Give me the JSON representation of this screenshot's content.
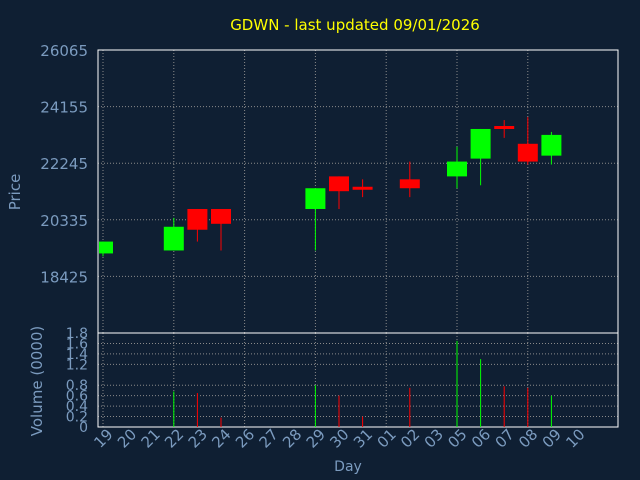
{
  "title": "GDWN - last updated 09/01/2026",
  "colors": {
    "background": "#0f1f33",
    "title": "#ffff00",
    "axis_text": "#7b9bbf",
    "grid": "#8a8a8a",
    "frame": "#ffffff",
    "up": "#00ff00",
    "down": "#ff0000"
  },
  "chart_data": [
    {
      "type": "candlestick",
      "ylabel": "Price",
      "ylim": [
        16515,
        26065
      ],
      "y_ticks": [
        "26065",
        "24155",
        "22245",
        "20335",
        "18425"
      ],
      "grid": true,
      "x_labels": [
        "19",
        "20",
        "21",
        "22",
        "23",
        "24",
        "26",
        "27",
        "28",
        "29",
        "30",
        "31",
        "01",
        "02",
        "03",
        "05",
        "06",
        "07",
        "08",
        "09",
        "10"
      ],
      "candles": [
        {
          "day": "19",
          "open": 19200,
          "high": 19600,
          "low": 19100,
          "close": 19600
        },
        {
          "day": "22",
          "open": 19300,
          "high": 20400,
          "low": 19300,
          "close": 20100
        },
        {
          "day": "23",
          "open": 20700,
          "high": 20700,
          "low": 19600,
          "close": 20000
        },
        {
          "day": "24",
          "open": 20700,
          "high": 20700,
          "low": 19300,
          "close": 20200
        },
        {
          "day": "29",
          "open": 20700,
          "high": 21400,
          "low": 19300,
          "close": 21400
        },
        {
          "day": "30",
          "open": 21800,
          "high": 21800,
          "low": 20700,
          "close": 21300
        },
        {
          "day": "31",
          "open": 21450,
          "high": 21700,
          "low": 21100,
          "close": 21350
        },
        {
          "day": "02",
          "open": 21700,
          "high": 22300,
          "low": 21100,
          "close": 21400
        },
        {
          "day": "05",
          "open": 21800,
          "high": 22800,
          "low": 21400,
          "close": 22300
        },
        {
          "day": "06",
          "open": 22400,
          "high": 23400,
          "low": 21500,
          "close": 23400
        },
        {
          "day": "07",
          "open": 23500,
          "high": 23700,
          "low": 23100,
          "close": 23400
        },
        {
          "day": "08",
          "open": 22900,
          "high": 23800,
          "low": 22200,
          "close": 22300
        },
        {
          "day": "09",
          "open": 22500,
          "high": 23300,
          "low": 22200,
          "close": 23200
        }
      ]
    },
    {
      "type": "bar",
      "ylabel": "Volume (0000)",
      "xlabel": "Day",
      "ylim": [
        0,
        1.8
      ],
      "y_ticks": [
        "0",
        "0.2",
        "0.4",
        "0.6",
        "0.8",
        "1.2",
        "1.4",
        "1.6",
        "1.8"
      ],
      "volumes": [
        {
          "day": "22",
          "value": 0.68,
          "dir": "up"
        },
        {
          "day": "23",
          "value": 0.65,
          "dir": "down"
        },
        {
          "day": "24",
          "value": 0.18,
          "dir": "down"
        },
        {
          "day": "29",
          "value": 0.8,
          "dir": "up"
        },
        {
          "day": "30",
          "value": 0.6,
          "dir": "down"
        },
        {
          "day": "31",
          "value": 0.2,
          "dir": "down"
        },
        {
          "day": "02",
          "value": 0.75,
          "dir": "down"
        },
        {
          "day": "05",
          "value": 1.65,
          "dir": "up"
        },
        {
          "day": "06",
          "value": 1.3,
          "dir": "up"
        },
        {
          "day": "07",
          "value": 0.78,
          "dir": "down"
        },
        {
          "day": "08",
          "value": 0.75,
          "dir": "down"
        },
        {
          "day": "09",
          "value": 0.6,
          "dir": "up"
        }
      ]
    }
  ]
}
